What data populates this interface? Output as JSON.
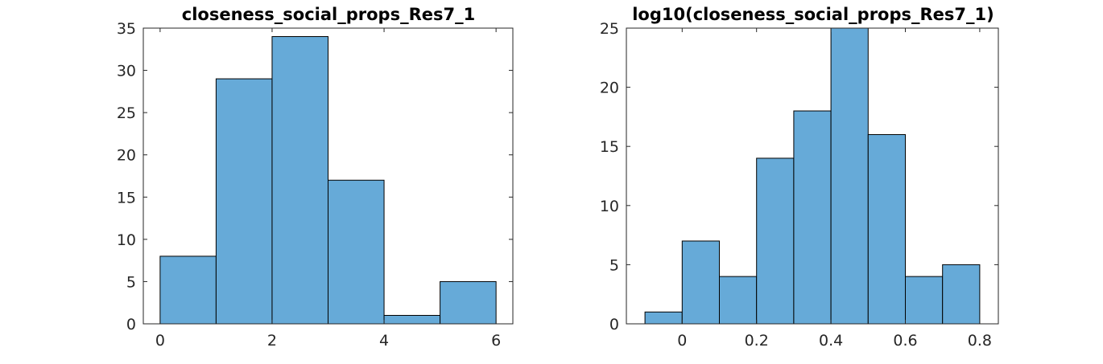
{
  "chart_data": [
    {
      "type": "bar",
      "title": "closeness_social_props_Res7_1",
      "xlabel": "",
      "ylabel": "",
      "bin_edges": [
        0,
        1,
        2,
        3,
        4,
        5,
        6
      ],
      "values": [
        8,
        29,
        34,
        17,
        1,
        5
      ],
      "xlim": [
        -0.3,
        6.3
      ],
      "ylim": [
        0,
        35
      ],
      "xticks": [
        0,
        2,
        4,
        6
      ],
      "xtick_labels": [
        "0",
        "2",
        "4",
        "6"
      ],
      "yticks": [
        0,
        5,
        10,
        15,
        20,
        25,
        30,
        35
      ],
      "ytick_labels": [
        "0",
        "5",
        "10",
        "15",
        "20",
        "25",
        "30",
        "35"
      ],
      "bar_color": "#66aad8",
      "grid": false
    },
    {
      "type": "bar",
      "title": "log10(closeness_social_props_Res7_1)",
      "xlabel": "",
      "ylabel": "",
      "bin_edges": [
        -0.1,
        0.0,
        0.1,
        0.2,
        0.3,
        0.4,
        0.5,
        0.6,
        0.7,
        0.8
      ],
      "values": [
        1,
        7,
        4,
        14,
        18,
        25,
        16,
        4,
        5
      ],
      "xlim": [
        -0.15,
        0.85
      ],
      "ylim": [
        0,
        25
      ],
      "xticks": [
        0,
        0.2,
        0.4,
        0.6,
        0.8
      ],
      "xtick_labels": [
        "0",
        "0.2",
        "0.4",
        "0.6",
        "0.8"
      ],
      "yticks": [
        0,
        5,
        10,
        15,
        20,
        25
      ],
      "ytick_labels": [
        "0",
        "5",
        "10",
        "15",
        "20",
        "25"
      ],
      "bar_color": "#66aad8",
      "grid": false
    }
  ]
}
